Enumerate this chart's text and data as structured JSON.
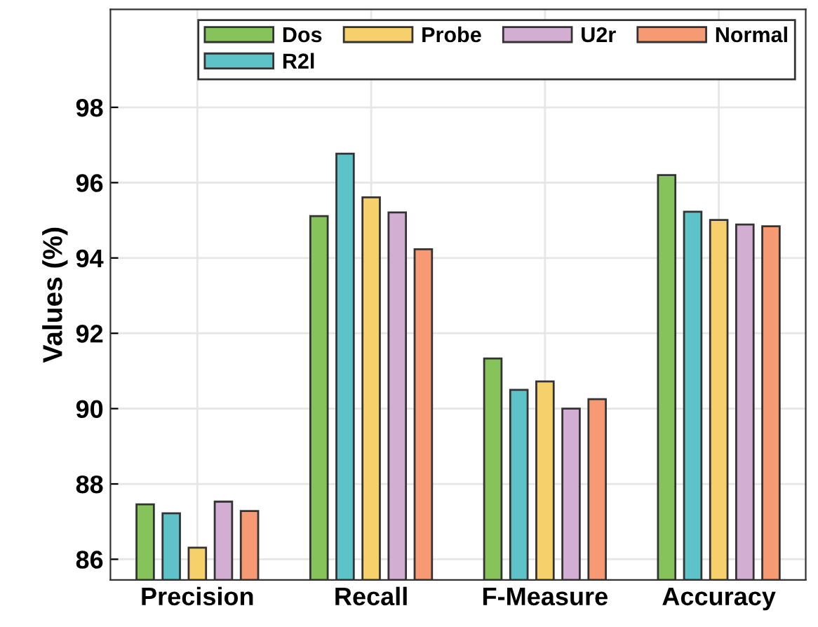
{
  "chart_data": {
    "type": "bar",
    "ylabel": "Values (%)",
    "categories": [
      "Precision",
      "Recall",
      "F-Measure",
      "Accuracy"
    ],
    "series": [
      {
        "name": "Dos",
        "color": "#86c35b",
        "values": [
          87.46,
          95.11,
          91.33,
          96.2
        ]
      },
      {
        "name": "R2l",
        "color": "#5ec3c9",
        "values": [
          87.22,
          96.77,
          90.5,
          95.23
        ]
      },
      {
        "name": "Probe",
        "color": "#f5d06b",
        "values": [
          86.31,
          95.61,
          90.72,
          95.01
        ]
      },
      {
        "name": "U2r",
        "color": "#d2aed3",
        "values": [
          87.53,
          95.21,
          90.0,
          94.89
        ]
      },
      {
        "name": "Normal",
        "color": "#f59a72",
        "values": [
          87.28,
          94.23,
          90.25,
          94.84
        ]
      }
    ],
    "ylim": [
      85.45,
      100.6
    ],
    "yticks": [
      86,
      88,
      90,
      92,
      94,
      96,
      98
    ],
    "grid": true,
    "legend": "top right"
  }
}
